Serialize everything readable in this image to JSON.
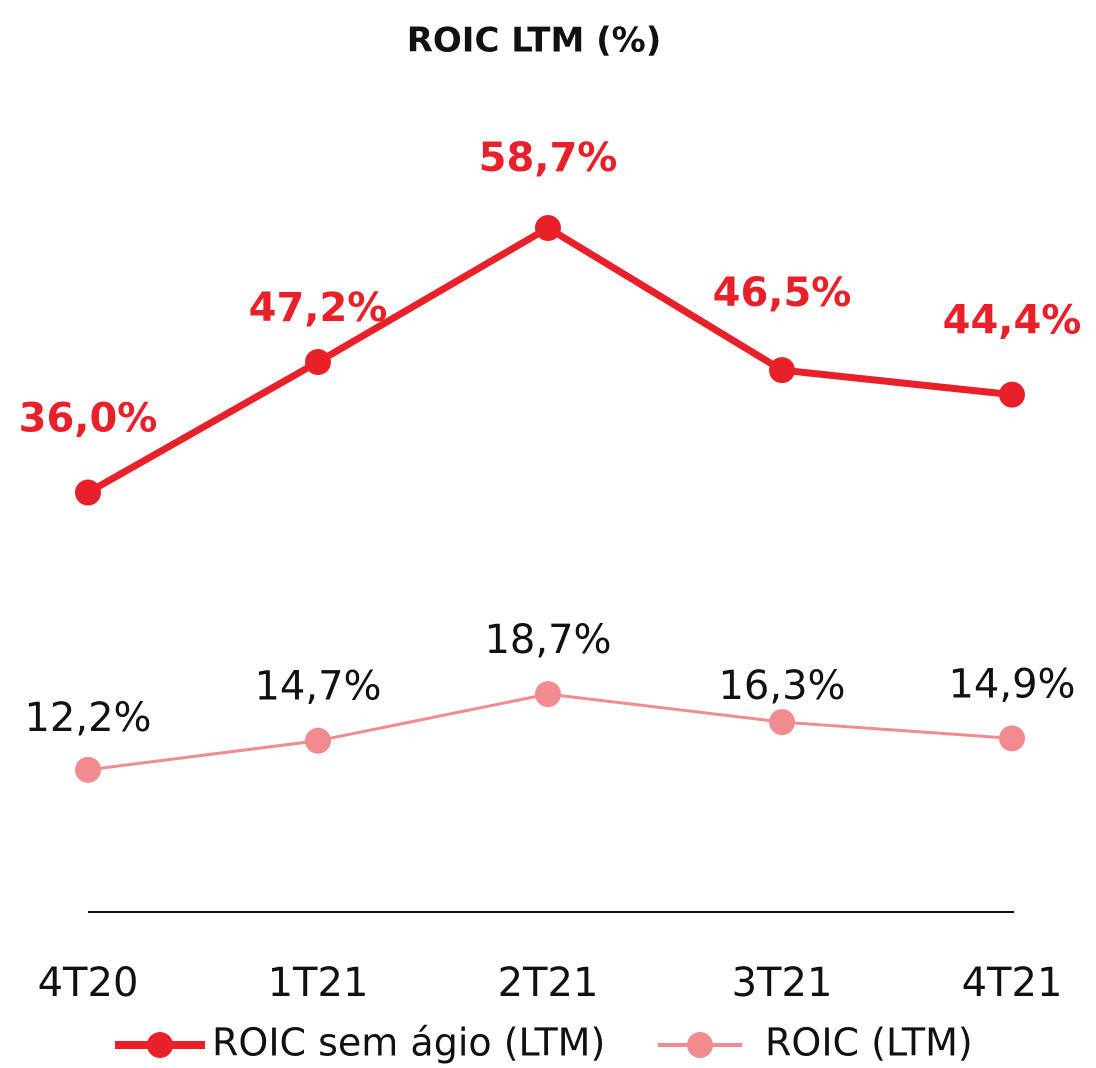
{
  "chart_data": {
    "type": "line",
    "title": "ROIC LTM (%)",
    "categories": [
      "4T20",
      "1T21",
      "2T21",
      "3T21",
      "4T21"
    ],
    "series": [
      {
        "name": "ROIC sem ágio (LTM)",
        "color": "#e8202a",
        "values": [
          36.0,
          47.2,
          58.7,
          46.5,
          44.4
        ],
        "value_labels": [
          "36,0%",
          "47,2%",
          "58,7%",
          "46,5%",
          "44,4%"
        ]
      },
      {
        "name": "ROIC (LTM)",
        "color": "#f28b8f",
        "values": [
          12.2,
          14.7,
          18.7,
          16.3,
          14.9
        ],
        "value_labels": [
          "12,2%",
          "14,7%",
          "18,7%",
          "16,3%",
          "14,9%"
        ]
      }
    ],
    "legend": "bottom"
  }
}
